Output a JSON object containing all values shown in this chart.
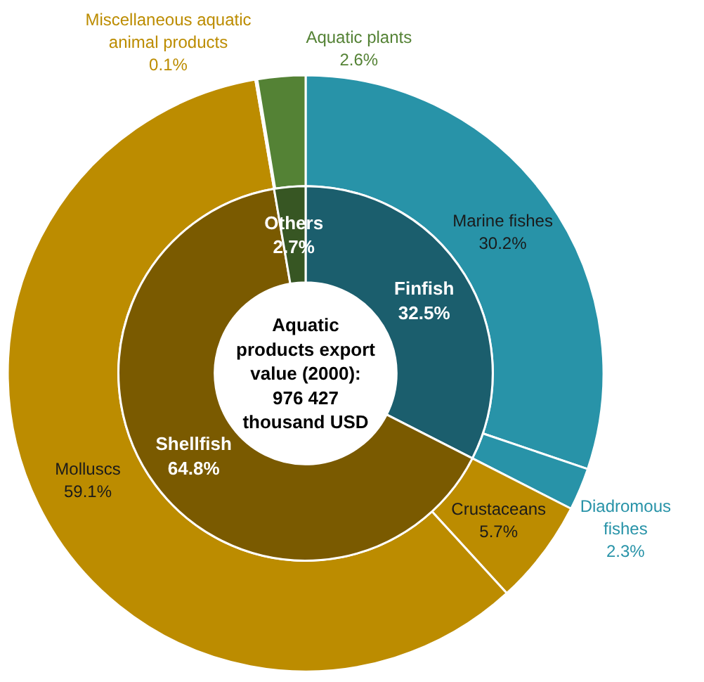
{
  "chart_data": [
    {
      "type": "donut",
      "title": "Aquatic products export value (2000): 976 427 thousand USD",
      "categories": [
        "Finfish",
        "Shellfish",
        "Others"
      ],
      "values": [
        32.5,
        64.8,
        2.7
      ],
      "colors": [
        "#1b5e6d",
        "#7a5a00",
        "#375623"
      ],
      "value_labels": [
        "32.5%",
        "64.8%",
        "2.7%"
      ]
    },
    {
      "type": "donut",
      "categories": [
        "Marine fishes",
        "Diadromous fishes",
        "Crustaceans",
        "Molluscs",
        "Miscellaneous aquatic animal products",
        "Aquatic plants"
      ],
      "values": [
        30.2,
        2.3,
        5.7,
        59.1,
        0.1,
        2.6
      ],
      "colors": [
        "#2893a8",
        "#2893a8",
        "#bc8c00",
        "#bc8c00",
        "#bc8c00",
        "#548235"
      ],
      "value_labels": [
        "30.2%",
        "2.3%",
        "5.7%",
        "59.1%",
        "0.1%",
        "2.6%"
      ]
    }
  ]
}
